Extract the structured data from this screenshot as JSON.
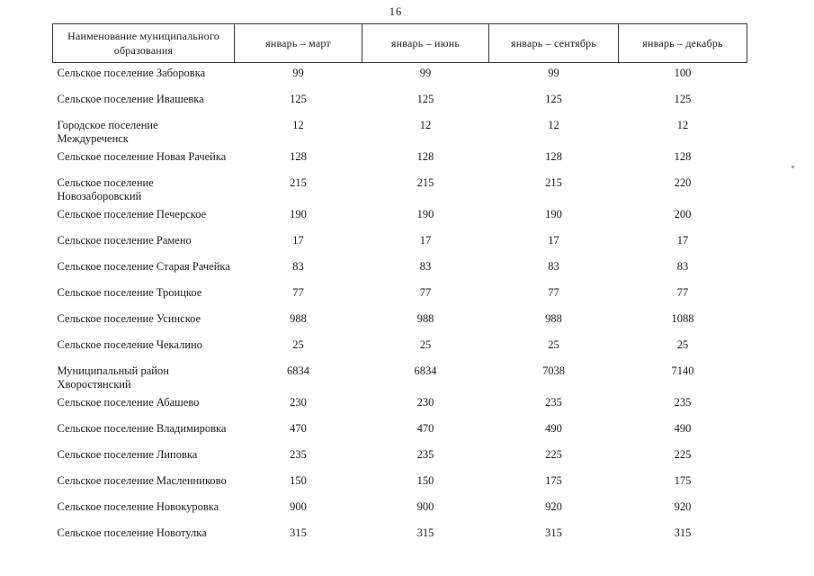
{
  "page": {
    "number": "16"
  },
  "table": {
    "header": {
      "name_col": "Наименование муниципального образования",
      "period_cols": [
        "январь – март",
        "январь – июнь",
        "январь – сентябрь",
        "январь – декабрь"
      ]
    },
    "rows": [
      {
        "name": "Сельское поселение Заборовка",
        "values": [
          "99",
          "99",
          "99",
          "100"
        ]
      },
      {
        "name": "Сельское поселение Ивашевка",
        "values": [
          "125",
          "125",
          "125",
          "125"
        ]
      },
      {
        "name": "Городское поселение Междуреченск",
        "values": [
          "12",
          "12",
          "12",
          "12"
        ]
      },
      {
        "name": "Сельское поселение Новая Рачейка",
        "values": [
          "128",
          "128",
          "128",
          "128"
        ]
      },
      {
        "name": "Сельское поселение Новозаборовский",
        "values": [
          "215",
          "215",
          "215",
          "220"
        ]
      },
      {
        "name": "Сельское поселение Печерское",
        "values": [
          "190",
          "190",
          "190",
          "200"
        ]
      },
      {
        "name": "Сельское поселение Рамено",
        "values": [
          "17",
          "17",
          "17",
          "17"
        ]
      },
      {
        "name": "Сельское поселение Старая Рачейка",
        "values": [
          "83",
          "83",
          "83",
          "83"
        ]
      },
      {
        "name": "Сельское поселение Троицкое",
        "values": [
          "77",
          "77",
          "77",
          "77"
        ]
      },
      {
        "name": "Сельское поселение Усинское",
        "values": [
          "988",
          "988",
          "988",
          "1088"
        ]
      },
      {
        "name": "Сельское поселение Чекалино",
        "values": [
          "25",
          "25",
          "25",
          "25"
        ]
      },
      {
        "name": "Муниципальный район Хворостянский",
        "values": [
          "6834",
          "6834",
          "7038",
          "7140"
        ]
      },
      {
        "name": "Сельское поселение Абашево",
        "values": [
          "230",
          "230",
          "235",
          "235"
        ]
      },
      {
        "name": "Сельское поселение Владимировка",
        "values": [
          "470",
          "470",
          "490",
          "490"
        ]
      },
      {
        "name": "Сельское поселение Липовка",
        "values": [
          "235",
          "235",
          "225",
          "225"
        ]
      },
      {
        "name": "Сельское поселение Масленниково",
        "values": [
          "150",
          "150",
          "175",
          "175"
        ]
      },
      {
        "name": "Сельское поселение Новокуровка",
        "values": [
          "900",
          "900",
          "920",
          "920"
        ]
      },
      {
        "name": "Сельское поселение Новотулка",
        "values": [
          "315",
          "315",
          "315",
          "315"
        ]
      }
    ]
  }
}
